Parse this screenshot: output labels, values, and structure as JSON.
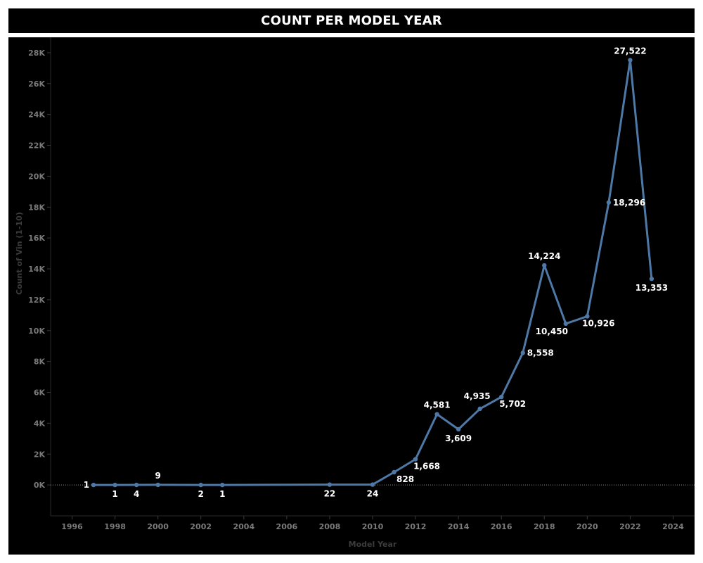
{
  "chart_data": {
    "type": "line",
    "title": "COUNT PER MODEL YEAR",
    "xlabel": "Model Year",
    "ylabel": "Count of Vin (1-10)",
    "xlim": [
      1995,
      2025
    ],
    "ylim": [
      -2000,
      29000
    ],
    "x_ticks": [
      1996,
      1998,
      2000,
      2002,
      2004,
      2006,
      2008,
      2010,
      2012,
      2014,
      2016,
      2018,
      2020,
      2022,
      2024
    ],
    "x_tick_labels": [
      "1996",
      "1998",
      "2000",
      "2002",
      "2004",
      "2006",
      "2008",
      "2010",
      "2012",
      "2014",
      "2016",
      "2018",
      "2020",
      "2022",
      "2024"
    ],
    "y_ticks": [
      0,
      2000,
      4000,
      6000,
      8000,
      10000,
      12000,
      14000,
      16000,
      18000,
      20000,
      22000,
      24000,
      26000,
      28000
    ],
    "y_tick_labels": [
      "0K",
      "2K",
      "4K",
      "6K",
      "8K",
      "10K",
      "12K",
      "14K",
      "16K",
      "18K",
      "20K",
      "22K",
      "24K",
      "26K",
      "28K"
    ],
    "line_color": "#4e79a7",
    "series": [
      {
        "name": "Count of Vin",
        "points": [
          {
            "x": 1997,
            "y": 1,
            "label": "1",
            "pos": "left"
          },
          {
            "x": 1998,
            "y": 1,
            "label": "1",
            "pos": "below"
          },
          {
            "x": 1999,
            "y": 4,
            "label": "4",
            "pos": "below"
          },
          {
            "x": 2000,
            "y": 9,
            "label": "9",
            "pos": "above"
          },
          {
            "x": 2002,
            "y": 2,
            "label": "2",
            "pos": "below"
          },
          {
            "x": 2003,
            "y": 1,
            "label": "1",
            "pos": "below"
          },
          {
            "x": 2008,
            "y": 22,
            "label": "22",
            "pos": "below"
          },
          {
            "x": 2010,
            "y": 24,
            "label": "24",
            "pos": "below"
          },
          {
            "x": 2011,
            "y": 828,
            "label": "828",
            "pos": "below-right"
          },
          {
            "x": 2012,
            "y": 1668,
            "label": "1,668",
            "pos": "below-right"
          },
          {
            "x": 2013,
            "y": 4581,
            "label": "4,581",
            "pos": "above"
          },
          {
            "x": 2014,
            "y": 3609,
            "label": "3,609",
            "pos": "below"
          },
          {
            "x": 2015,
            "y": 4935,
            "label": "4,935",
            "pos": "above-left"
          },
          {
            "x": 2016,
            "y": 5702,
            "label": "5,702",
            "pos": "below-right"
          },
          {
            "x": 2017,
            "y": 8558,
            "label": "8,558",
            "pos": "right"
          },
          {
            "x": 2018,
            "y": 14224,
            "label": "14,224",
            "pos": "above"
          },
          {
            "x": 2019,
            "y": 10450,
            "label": "10,450",
            "pos": "below-left"
          },
          {
            "x": 2020,
            "y": 10926,
            "label": "10,926",
            "pos": "below-right"
          },
          {
            "x": 2021,
            "y": 18296,
            "label": "18,296",
            "pos": "right"
          },
          {
            "x": 2022,
            "y": 27522,
            "label": "27,522",
            "pos": "above"
          },
          {
            "x": 2023,
            "y": 13353,
            "label": "13,353",
            "pos": "below"
          }
        ]
      }
    ]
  }
}
